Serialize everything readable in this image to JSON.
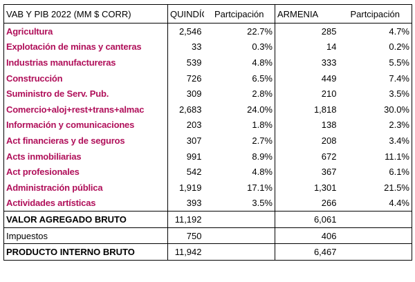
{
  "header": {
    "title": "VAB Y PIB 2022 (MM $ CORR)",
    "quindio": "QUINDÍO",
    "part1": "Partcipación",
    "armenia": "ARMENIA",
    "part2": "Partcipación"
  },
  "sectors": [
    {
      "name": "Agricultura",
      "quindio": "2,546",
      "q_pct": "22.7%",
      "armenia": "285",
      "a_pct": "4.7%"
    },
    {
      "name": "Explotación de minas y canteras",
      "quindio": "33",
      "q_pct": "0.3%",
      "armenia": "14",
      "a_pct": "0.2%"
    },
    {
      "name": "Industrias manufactureras",
      "quindio": "539",
      "q_pct": "4.8%",
      "armenia": "333",
      "a_pct": "5.5%"
    },
    {
      "name": "Construcción",
      "quindio": "726",
      "q_pct": "6.5%",
      "armenia": "449",
      "a_pct": "7.4%"
    },
    {
      "name": "Suministro de Serv. Pub.",
      "quindio": "309",
      "q_pct": "2.8%",
      "armenia": "210",
      "a_pct": "3.5%"
    },
    {
      "name": "Comercio+aloj+rest+trans+almac",
      "quindio": "2,683",
      "q_pct": "24.0%",
      "armenia": "1,818",
      "a_pct": "30.0%"
    },
    {
      "name": "Información y comunicaciones",
      "quindio": "203",
      "q_pct": "1.8%",
      "armenia": "138",
      "a_pct": "2.3%"
    },
    {
      "name": "Act financieras y de seguros",
      "quindio": "307",
      "q_pct": "2.7%",
      "armenia": "208",
      "a_pct": "3.4%"
    },
    {
      "name": "Acts inmobiliarias",
      "quindio": "991",
      "q_pct": "8.9%",
      "armenia": "672",
      "a_pct": "11.1%"
    },
    {
      "name": "Act profesionales",
      "quindio": "542",
      "q_pct": "4.8%",
      "armenia": "367",
      "a_pct": "6.1%"
    },
    {
      "name": "Administración pública",
      "quindio": "1,919",
      "q_pct": "17.1%",
      "armenia": "1,301",
      "a_pct": "21.5%"
    },
    {
      "name": "Actividades artísticas",
      "quindio": "393",
      "q_pct": "3.5%",
      "armenia": "266",
      "a_pct": "4.4%"
    }
  ],
  "totals": [
    {
      "name": "VALOR AGREGADO BRUTO",
      "quindio": "11,192",
      "armenia": "6,061"
    },
    {
      "name": "Impuestos",
      "quindio": "750",
      "armenia": "406"
    },
    {
      "name": "PRODUCTO INTERNO BRUTO",
      "quindio": "11,942",
      "armenia": "6,467"
    }
  ],
  "colors": {
    "sector_label": "#b0105a",
    "text": "#000000",
    "border": "#000000"
  }
}
